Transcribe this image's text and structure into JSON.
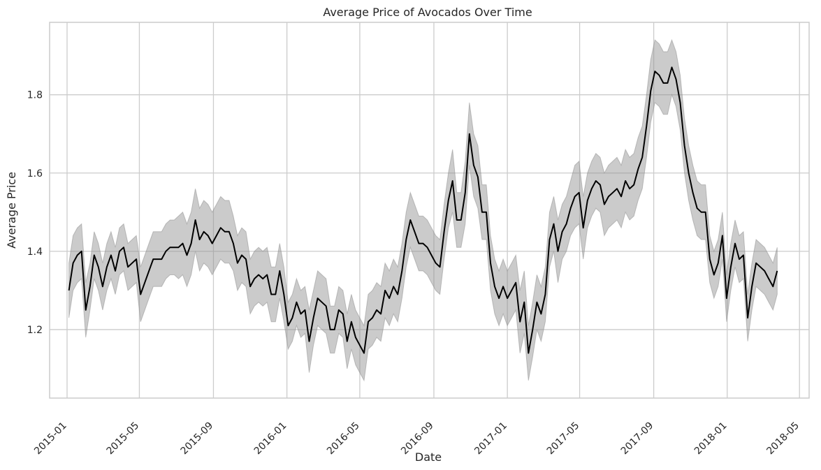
{
  "chart_data": {
    "type": "line",
    "title": "Average Price of Avocados Over Time",
    "xlabel": "Date",
    "ylabel": "Average Price",
    "x_start": "2015-01-04",
    "x_step_days": 7,
    "xlim": [
      "2014-12-03",
      "2018-05-17"
    ],
    "ylim": [
      1.025,
      1.985
    ],
    "grid": true,
    "x_ticks": [
      "2015-01",
      "2015-05",
      "2015-09",
      "2016-01",
      "2016-05",
      "2016-09",
      "2017-01",
      "2017-05",
      "2017-09",
      "2018-01",
      "2018-05"
    ],
    "y_ticks": [
      1.2,
      1.4,
      1.6,
      1.8
    ],
    "y_tick_labels": [
      "1.2",
      "1.4",
      "1.6",
      "1.8"
    ],
    "colors": {
      "line": "#000000",
      "band": "#8c8c8c",
      "grid": "#cccccc",
      "spine": "#cccccc"
    },
    "series": [
      {
        "values": [
          1.3,
          1.37,
          1.39,
          1.4,
          1.25,
          1.31,
          1.39,
          1.36,
          1.31,
          1.36,
          1.39,
          1.35,
          1.4,
          1.41,
          1.36,
          1.37,
          1.38,
          1.29,
          1.32,
          1.35,
          1.38,
          1.38,
          1.38,
          1.4,
          1.41,
          1.41,
          1.41,
          1.42,
          1.39,
          1.42,
          1.48,
          1.43,
          1.45,
          1.44,
          1.42,
          1.44,
          1.46,
          1.45,
          1.45,
          1.42,
          1.37,
          1.39,
          1.38,
          1.31,
          1.33,
          1.34,
          1.33,
          1.34,
          1.29,
          1.29,
          1.35,
          1.29,
          1.21,
          1.23,
          1.27,
          1.24,
          1.25,
          1.17,
          1.23,
          1.28,
          1.27,
          1.26,
          1.2,
          1.2,
          1.25,
          1.24,
          1.17,
          1.22,
          1.18,
          1.16,
          1.14,
          1.22,
          1.23,
          1.25,
          1.24,
          1.3,
          1.28,
          1.31,
          1.29,
          1.35,
          1.43,
          1.48,
          1.45,
          1.42,
          1.42,
          1.41,
          1.39,
          1.37,
          1.36,
          1.45,
          1.53,
          1.58,
          1.48,
          1.48,
          1.55,
          1.7,
          1.62,
          1.59,
          1.5,
          1.5,
          1.37,
          1.31,
          1.28,
          1.31,
          1.28,
          1.3,
          1.32,
          1.22,
          1.27,
          1.14,
          1.2,
          1.27,
          1.24,
          1.29,
          1.43,
          1.47,
          1.4,
          1.45,
          1.47,
          1.51,
          1.54,
          1.55,
          1.46,
          1.53,
          1.56,
          1.58,
          1.57,
          1.52,
          1.54,
          1.55,
          1.56,
          1.54,
          1.58,
          1.56,
          1.57,
          1.61,
          1.64,
          1.72,
          1.81,
          1.86,
          1.85,
          1.83,
          1.83,
          1.87,
          1.84,
          1.78,
          1.67,
          1.6,
          1.55,
          1.51,
          1.5,
          1.5,
          1.38,
          1.34,
          1.37,
          1.44,
          1.28,
          1.36,
          1.42,
          1.38,
          1.39,
          1.23,
          1.31,
          1.37,
          1.36,
          1.35,
          1.33,
          1.31,
          1.35
        ],
        "band_halfwidth": [
          0.07,
          0.07,
          0.07,
          0.07,
          0.07,
          0.06,
          0.06,
          0.06,
          0.06,
          0.06,
          0.06,
          0.06,
          0.06,
          0.06,
          0.06,
          0.06,
          0.06,
          0.07,
          0.07,
          0.07,
          0.07,
          0.07,
          0.07,
          0.07,
          0.07,
          0.07,
          0.08,
          0.08,
          0.08,
          0.08,
          0.08,
          0.08,
          0.08,
          0.08,
          0.08,
          0.08,
          0.08,
          0.08,
          0.08,
          0.07,
          0.07,
          0.07,
          0.07,
          0.07,
          0.07,
          0.07,
          0.07,
          0.07,
          0.07,
          0.07,
          0.07,
          0.07,
          0.06,
          0.06,
          0.06,
          0.06,
          0.06,
          0.08,
          0.07,
          0.07,
          0.07,
          0.07,
          0.06,
          0.06,
          0.06,
          0.06,
          0.07,
          0.07,
          0.07,
          0.07,
          0.07,
          0.07,
          0.07,
          0.07,
          0.07,
          0.07,
          0.07,
          0.07,
          0.07,
          0.07,
          0.07,
          0.07,
          0.07,
          0.07,
          0.07,
          0.07,
          0.07,
          0.07,
          0.07,
          0.07,
          0.07,
          0.08,
          0.07,
          0.07,
          0.08,
          0.08,
          0.08,
          0.08,
          0.07,
          0.07,
          0.07,
          0.07,
          0.07,
          0.07,
          0.07,
          0.07,
          0.07,
          0.08,
          0.08,
          0.07,
          0.07,
          0.07,
          0.07,
          0.07,
          0.07,
          0.07,
          0.08,
          0.07,
          0.07,
          0.07,
          0.08,
          0.08,
          0.08,
          0.07,
          0.07,
          0.07,
          0.07,
          0.08,
          0.08,
          0.08,
          0.08,
          0.08,
          0.08,
          0.08,
          0.08,
          0.08,
          0.08,
          0.08,
          0.08,
          0.08,
          0.08,
          0.08,
          0.08,
          0.07,
          0.07,
          0.07,
          0.07,
          0.07,
          0.07,
          0.07,
          0.07,
          0.07,
          0.06,
          0.06,
          0.06,
          0.06,
          0.06,
          0.06,
          0.06,
          0.06,
          0.06,
          0.06,
          0.06,
          0.06,
          0.06,
          0.06,
          0.06,
          0.06,
          0.06,
          0.06
        ]
      }
    ]
  }
}
